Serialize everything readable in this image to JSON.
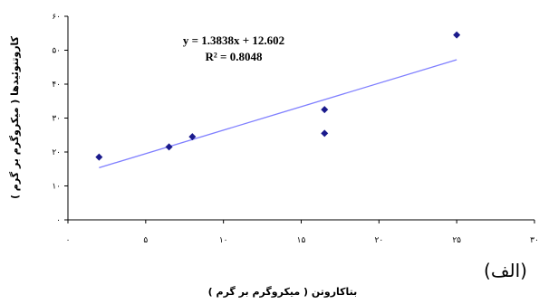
{
  "chart_data": {
    "type": "scatter",
    "xlabel": "بتاکاروتن ( میکروگرم بر گرم )",
    "ylabel": "کاروتنوئیدها ( میکروگرم بر گرم )",
    "xlim": [
      0,
      30
    ],
    "ylim": [
      0,
      60
    ],
    "x_ticks": [
      0,
      5,
      10,
      15,
      20,
      25,
      30
    ],
    "y_ticks": [
      0,
      10,
      20,
      30,
      40,
      50,
      60
    ],
    "x_tick_labels": [
      "۰",
      "۵",
      "۱۰",
      "۱۵",
      "۲۰",
      "۲۵",
      "۳۰"
    ],
    "y_tick_labels": [
      "۰",
      "۱۰",
      "۲۰",
      "۳۰",
      "۴۰",
      "۵۰",
      "۶۰"
    ],
    "series": [
      {
        "marker": "diamond",
        "color": "#1a1a8c",
        "points": [
          {
            "x": 2,
            "y": 18.5
          },
          {
            "x": 6.5,
            "y": 21.5
          },
          {
            "x": 8,
            "y": 24.5
          },
          {
            "x": 16.5,
            "y": 25.5
          },
          {
            "x": 16.5,
            "y": 32.5
          },
          {
            "x": 25,
            "y": 54.5
          }
        ]
      }
    ],
    "trendline": {
      "slope": 1.3838,
      "intercept": 12.602,
      "x_range": [
        2,
        25
      ],
      "color": "#7f7fff",
      "equation_text": "y = 1.3838x + 12.602",
      "r2_text": "R² = 0.8048"
    },
    "grid": false,
    "legend": "none",
    "panel_label": "(الف)"
  }
}
